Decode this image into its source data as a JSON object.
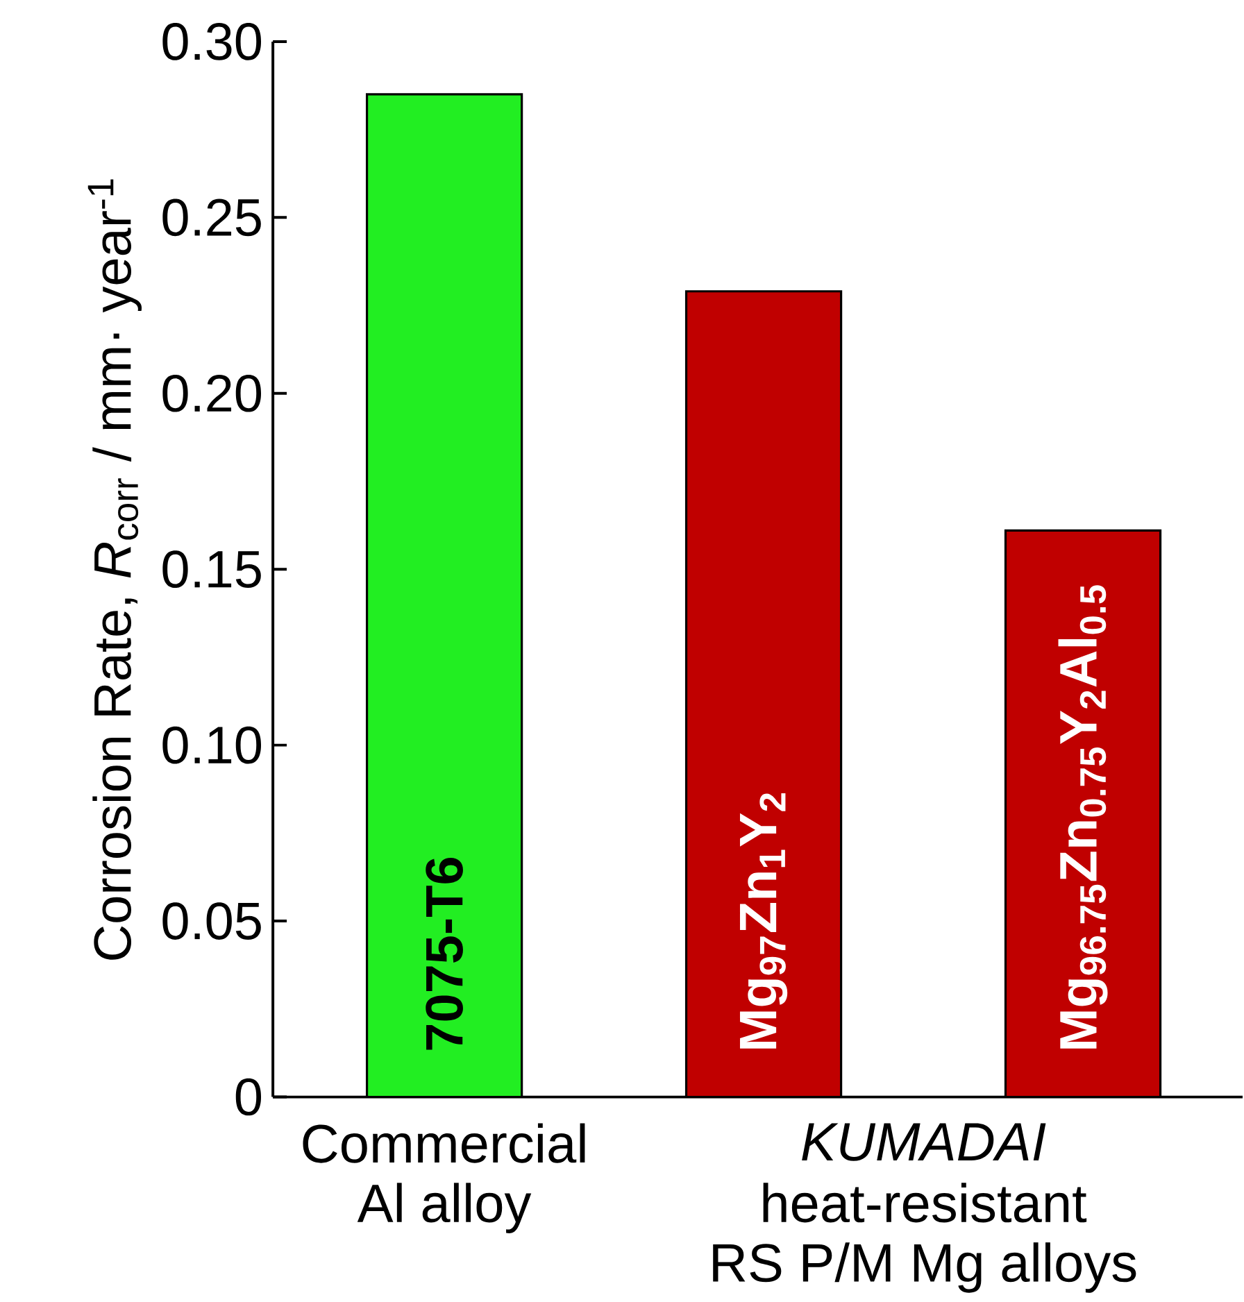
{
  "chart_data": {
    "type": "bar",
    "ylabel": "Corrosion Rate,  *R*$_{corr}$ / mm· year$^{-1}$",
    "categories": [
      "7075-T6",
      "Mg$_{97}$Zn$_{1}$Y$_{2}$",
      "Mg$_{96.75}$Zn$_{0.75}$Y$_{2}$Al$_{0.5}$"
    ],
    "values": [
      0.285,
      0.229,
      0.161
    ],
    "colors": [
      "#22ee22",
      "#c00000",
      "#c00000"
    ],
    "ylim": [
      0,
      0.3
    ],
    "yticks": [
      0,
      0.05,
      {
        "value": 0.1,
        "label": "0.10"
      },
      0.15,
      {
        "value": 0.2,
        "label": "0.20"
      },
      0.25,
      {
        "value": 0.3,
        "label": "0.30"
      }
    ],
    "annotations": [
      "Commercial",
      "Al alloy",
      "*KUMADAI*",
      "heat-resistant",
      "RS P/M Mg alloys"
    ]
  }
}
